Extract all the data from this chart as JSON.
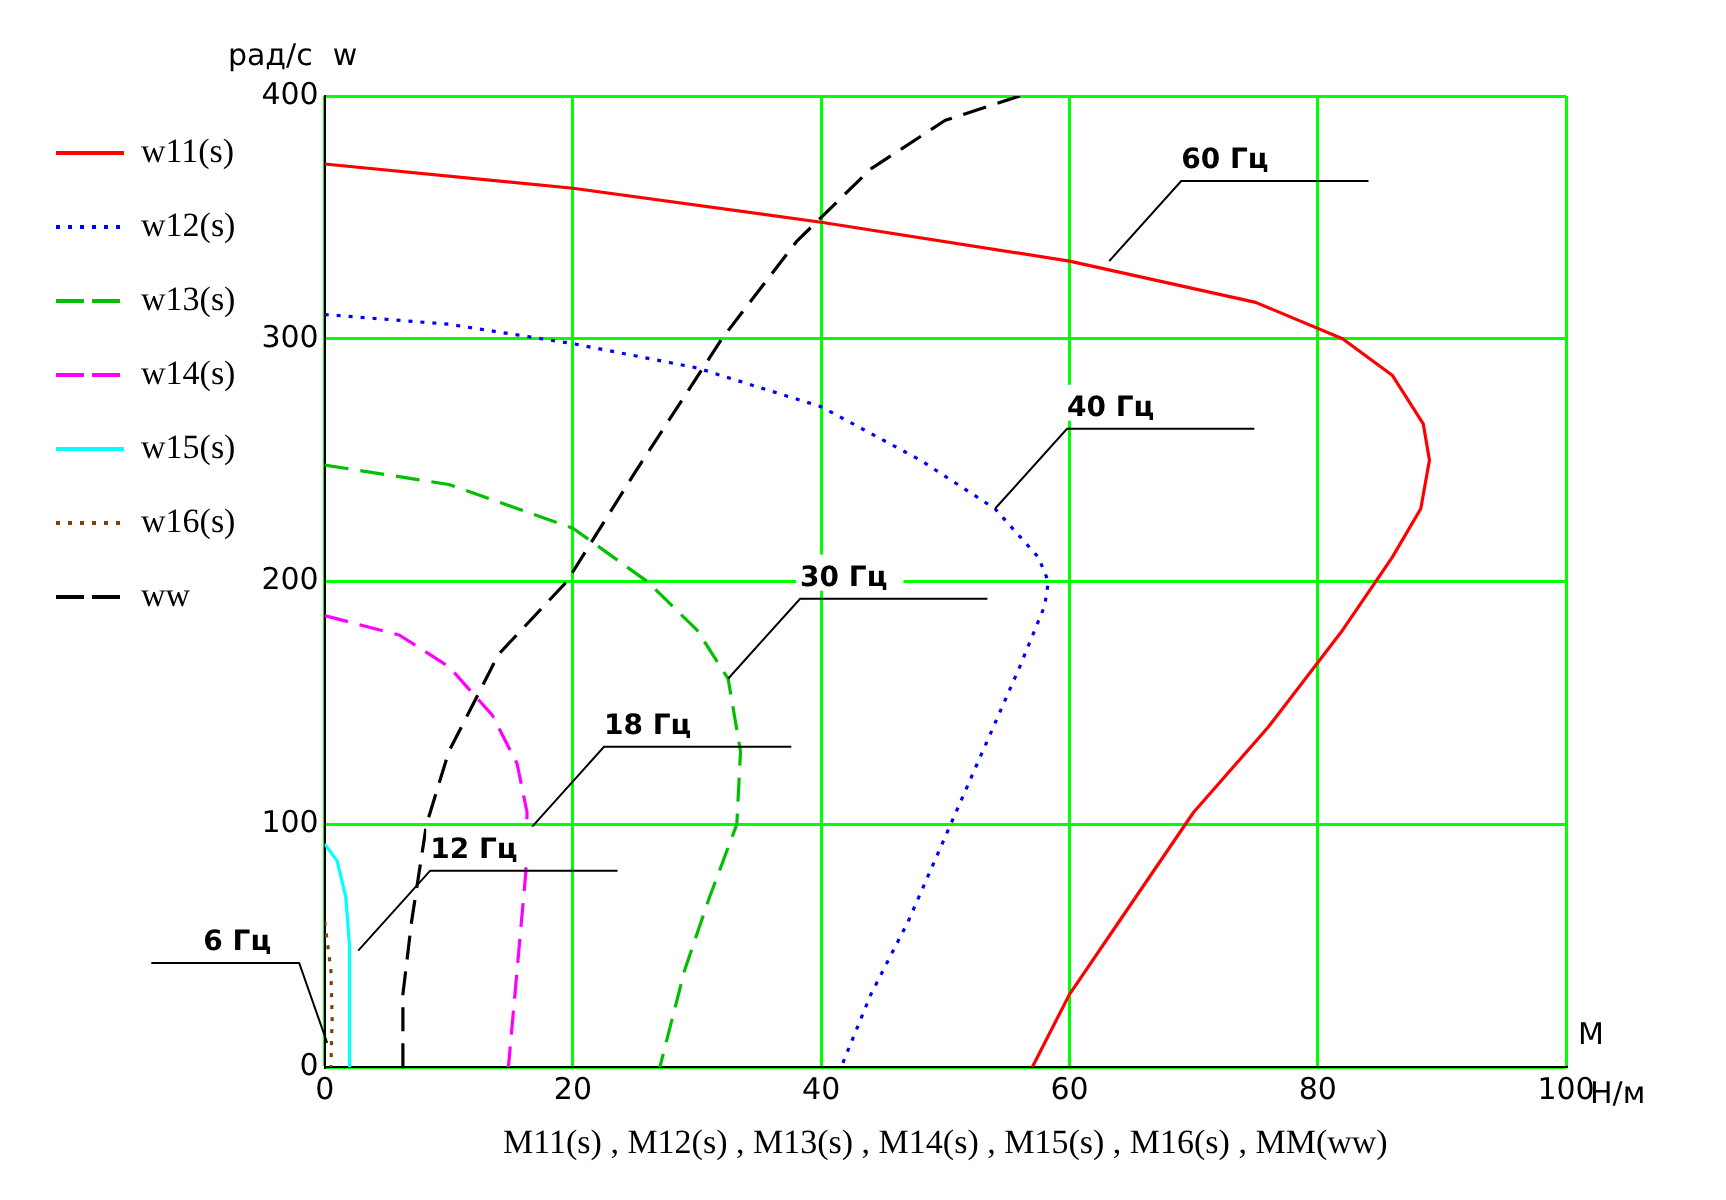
{
  "chart_data": {
    "type": "line",
    "xlabel": "M11(s) , M12(s) , M13(s) , M14(s) , M15(s) , M16(s) , MM(ww)",
    "ylabel": "w",
    "xlim": [
      0,
      100
    ],
    "xticks": [
      0,
      20,
      40,
      60,
      80,
      100
    ],
    "ylim": [
      0,
      400
    ],
    "yticks": [
      0,
      100,
      200,
      300,
      400
    ],
    "grid": true,
    "legend": "left",
    "series": [
      {
        "name": "w11(s)",
        "color": "#ff0000",
        "line_style": "solid",
        "x": [
          0,
          20,
          40,
          60,
          75,
          82,
          86,
          88.5,
          89,
          88.3,
          86,
          82,
          76,
          70,
          64,
          60,
          57
        ],
        "values": [
          372,
          362,
          348,
          332,
          315,
          300,
          285,
          265,
          250,
          230,
          210,
          180,
          140,
          105,
          60,
          30,
          0
        ]
      },
      {
        "name": "w12(s)",
        "color": "#0000ff",
        "line_style": "dotted",
        "x": [
          0,
          10,
          20,
          30,
          40,
          48,
          54,
          57.5,
          58.3,
          58,
          56,
          53,
          50,
          47,
          44,
          41.6
        ],
        "values": [
          310,
          306,
          298,
          288,
          272,
          250,
          230,
          210,
          200,
          190,
          165,
          130,
          95,
          60,
          30,
          0
        ]
      },
      {
        "name": "w13(s)",
        "color": "#00c000",
        "line_style": "dashed",
        "x": [
          0,
          10,
          20,
          26,
          30,
          32.5,
          33.5,
          33.2,
          31,
          29,
          27
        ],
        "values": [
          248,
          240,
          222,
          200,
          180,
          160,
          130,
          100,
          70,
          40,
          0
        ]
      },
      {
        "name": "w14(s)",
        "color": "#ff00ff",
        "line_style": "dashed",
        "x": [
          0,
          6,
          10,
          13.5,
          15.5,
          16.3,
          16.2,
          15.5,
          14.8
        ],
        "values": [
          186,
          178,
          165,
          145,
          125,
          105,
          80,
          40,
          0
        ]
      },
      {
        "name": "w15(s)",
        "color": "#00ffff",
        "line_style": "solid",
        "x": [
          0,
          1,
          1.7,
          2,
          2
        ],
        "values": [
          92,
          85,
          70,
          50,
          0
        ]
      },
      {
        "name": "w16(s)",
        "color": "#804000",
        "line_style": "dotted",
        "x": [
          0,
          0.5,
          0.6,
          0.5
        ],
        "values": [
          60,
          40,
          20,
          0
        ]
      },
      {
        "name": "ww",
        "color": "#000000",
        "line_style": "dashed",
        "x": [
          6.3,
          6.3,
          7,
          8.2,
          10,
          14,
          19.5,
          25,
          32,
          38,
          44,
          50,
          56
        ],
        "values": [
          0,
          30,
          60,
          100,
          130,
          170,
          200,
          245,
          300,
          340,
          370,
          390,
          400
        ]
      }
    ],
    "annotations": [
      "рад/с",
      "M",
      "Н/м",
      {
        "text": "60 Гц",
        "x": 63.2,
        "y": 332
      },
      {
        "text": "40 Гц",
        "x": 54,
        "y": 230
      },
      {
        "text": "30 Гц",
        "x": 32.5,
        "y": 160
      },
      {
        "text": "18 Гц",
        "x": 16.7,
        "y": 99
      },
      {
        "text": "12 Гц",
        "x": 2.7,
        "y": 48
      },
      {
        "text": "6 Гц",
        "x": 0.2,
        "y": 10
      }
    ]
  }
}
